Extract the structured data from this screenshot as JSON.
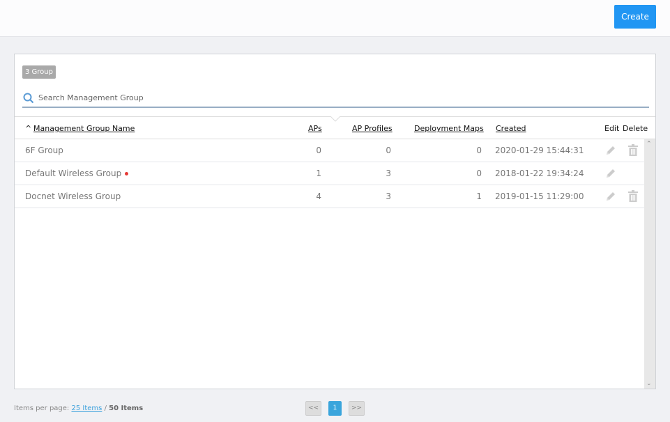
{
  "toolbar": {
    "create_label": "Create"
  },
  "panel": {
    "group_count": "3 Group",
    "search": {
      "placeholder": "Search Management Group",
      "value": ""
    },
    "columns": {
      "name": "Management Group Name",
      "aps": "APs",
      "ap_profiles": "AP Profiles",
      "deployment_maps": "Deployment Maps",
      "created": "Created",
      "edit": "Edit",
      "delete": "Delete"
    },
    "sort_indicator": "^",
    "rows": [
      {
        "name": "6F Group",
        "aps": "0",
        "ap_profiles": "0",
        "deployment_maps": "0",
        "created": "2020-01-29 15:44:31",
        "default": false,
        "deletable": true
      },
      {
        "name": "Default Wireless Group",
        "aps": "1",
        "ap_profiles": "3",
        "deployment_maps": "0",
        "created": "2018-01-22 19:34:24",
        "default": true,
        "deletable": false
      },
      {
        "name": "Docnet Wireless Group",
        "aps": "4",
        "ap_profiles": "3",
        "deployment_maps": "1",
        "created": "2019-01-15 11:29:00",
        "default": false,
        "deletable": true
      }
    ]
  },
  "footer": {
    "items_per_page_label": "Items per page:",
    "items_per_page": "25 Items",
    "separator": "/",
    "total": "50 Items"
  },
  "pagination": {
    "prev": "<<",
    "current": "1",
    "next": ">>"
  },
  "colors": {
    "accent": "#2196f3",
    "page_active": "#3aa5dc",
    "default_dot": "#e53935"
  }
}
